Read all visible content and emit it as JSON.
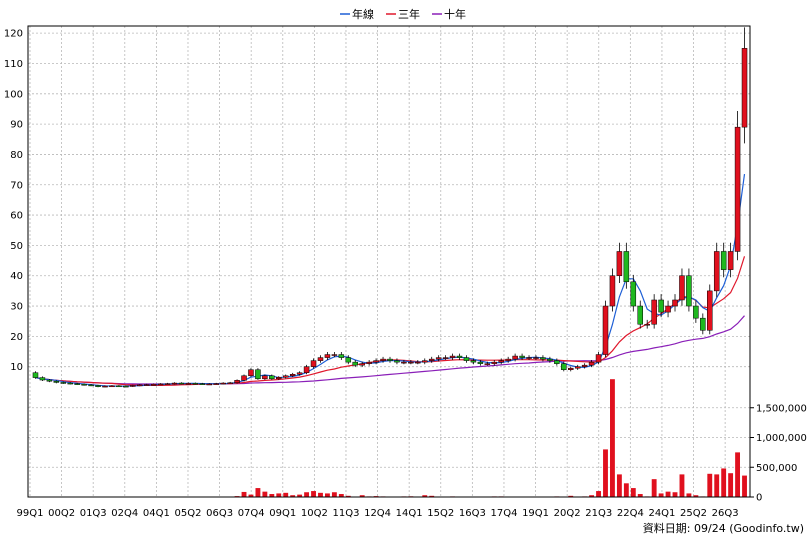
{
  "chart_data": {
    "type": "candlestick",
    "legend": [
      {
        "name": "年線",
        "color": "#1e5fd6"
      },
      {
        "name": "三年",
        "color": "#e0182c"
      },
      {
        "name": "十年",
        "color": "#8a1fb8"
      }
    ],
    "footer": "資料日期: 09/24  (Goodinfo.tw)",
    "price_axis": {
      "ylim": [
        0,
        125
      ],
      "ticks": [
        "10",
        "20",
        "30",
        "40",
        "50",
        "60",
        "70",
        "80",
        "90",
        "100",
        "110",
        "120"
      ],
      "side": "left"
    },
    "volume_axis": {
      "ylim": [
        0,
        2000000
      ],
      "ticks": [
        "0",
        "500,000",
        "1,000,000",
        "1,500,000"
      ],
      "side": "right"
    },
    "x_labels": [
      "99Q1",
      "00Q2",
      "01Q3",
      "02Q4",
      "04Q1",
      "05Q2",
      "06Q3",
      "07Q4",
      "09Q1",
      "10Q2",
      "11Q3",
      "12Q4",
      "14Q1",
      "15Q2",
      "16Q3",
      "17Q4",
      "19Q1",
      "20Q2",
      "21Q3",
      "22Q4",
      "24Q1",
      "25Q2",
      "26Q3"
    ],
    "colors": {
      "up": "#e0101e",
      "down": "#1fb81f",
      "volume": "#e0101e",
      "grid": "#b8b8b8"
    },
    "grid": true,
    "close": [
      6.4,
      5.6,
      5.2,
      4.8,
      4.6,
      4.4,
      4.2,
      4.0,
      3.8,
      3.4,
      3.6,
      3.7,
      3.6,
      3.5,
      3.8,
      4.0,
      4.1,
      4.2,
      4.3,
      4.4,
      4.6,
      4.5,
      4.5,
      4.4,
      4.3,
      4.3,
      4.4,
      4.6,
      4.7,
      5.5,
      7.0,
      9.0,
      6.0,
      7.0,
      6.0,
      6.5,
      7.0,
      7.5,
      8.0,
      10.0,
      12.0,
      13.0,
      14.0,
      14.0,
      13.0,
      11.5,
      10.5,
      11.0,
      11.5,
      12.0,
      12.5,
      12.0,
      11.5,
      11.5,
      11.5,
      11.5,
      12.0,
      12.5,
      13.0,
      13.0,
      13.5,
      13.0,
      12.0,
      11.5,
      11.0,
      11.0,
      11.5,
      12.0,
      12.5,
      13.5,
      13.0,
      13.0,
      13.0,
      12.5,
      12.0,
      11.0,
      9.0,
      9.5,
      10.0,
      10.5,
      11.5,
      14.0,
      30.0,
      40.0,
      48.0,
      38.0,
      30.0,
      24.0,
      24.0,
      32.0,
      28.0,
      30.0,
      32.0,
      40.0,
      30.0,
      26.0,
      22.0,
      35.0,
      48.0,
      42.0,
      48.0,
      89.0,
      115.0
    ],
    "volume": [
      6000,
      5000,
      4000,
      4000,
      3000,
      3000,
      3000,
      3000,
      3000,
      3000,
      3000,
      8000,
      5000,
      3000,
      5000,
      8000,
      4000,
      3000,
      5000,
      3000,
      5000,
      4000,
      4000,
      3000,
      5000,
      4000,
      3000,
      6000,
      8000,
      15000,
      85000,
      40000,
      150000,
      90000,
      50000,
      60000,
      70000,
      30000,
      40000,
      80000,
      100000,
      70000,
      60000,
      80000,
      50000,
      20000,
      5000,
      30000,
      10000,
      15000,
      10000,
      8000,
      5000,
      10000,
      12000,
      8000,
      30000,
      20000,
      5000,
      8000,
      10000,
      5000,
      8000,
      5000,
      5000,
      5000,
      10000,
      10000,
      5000,
      3000,
      8000,
      5000,
      6000,
      5000,
      5000,
      10000,
      5000,
      20000,
      8000,
      10000,
      30000,
      100000,
      800000,
      1980000,
      380000,
      230000,
      150000,
      50000,
      10000,
      300000,
      60000,
      90000,
      80000,
      380000,
      60000,
      30000,
      10000,
      390000,
      380000,
      480000,
      400000,
      750000,
      360000
    ]
  }
}
